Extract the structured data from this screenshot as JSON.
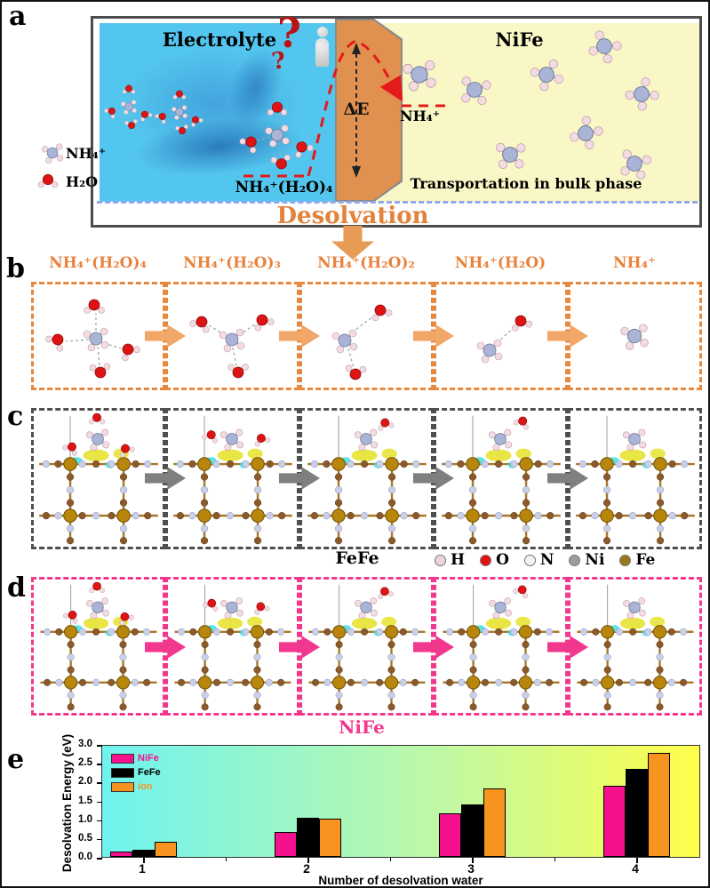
{
  "panel_a": {
    "letter": "a",
    "electrolyte_title": "Electrolyte",
    "nife_title": "NiFe",
    "legend": {
      "nh4": "NH₄⁺",
      "h2o": "H₂O"
    },
    "cluster_label": "NH₄⁺(H₂O)₄",
    "delta_e_label": "ΔE",
    "question_mark": "?",
    "nh4_plus_label": "NH₄⁺",
    "transport_label": "Transportation in bulk phase",
    "desolvation_label": "Desolvation"
  },
  "panel_b": {
    "letter": "b",
    "steps": [
      "NH₄⁺(H₂O)₄",
      "NH₄⁺(H₂O)₃",
      "NH₄⁺(H₂O)₂",
      "NH₄⁺(H₂O)",
      "NH₄⁺"
    ]
  },
  "panel_c": {
    "letter": "c",
    "caption": "FeFe",
    "atom_legend": [
      {
        "symbol": "H",
        "color": "#EBD5DA"
      },
      {
        "symbol": "O",
        "color": "#E11212"
      },
      {
        "symbol": "N",
        "color": "#F2F2F2"
      },
      {
        "symbol": "Ni",
        "color": "#9C9C9C"
      },
      {
        "symbol": "Fe",
        "color": "#98791B"
      }
    ]
  },
  "panel_d": {
    "letter": "d",
    "caption": "NiFe"
  },
  "panel_e": {
    "letter": "e"
  },
  "chart_data": {
    "type": "bar",
    "title": "",
    "categories": [
      "1",
      "2",
      "3",
      "4"
    ],
    "series": [
      {
        "name": "NiFe",
        "color": "#F5108E",
        "values": [
          0.15,
          0.66,
          1.16,
          1.9
        ]
      },
      {
        "name": "FeFe",
        "color": "#000000",
        "values": [
          0.18,
          1.05,
          1.39,
          2.35
        ]
      },
      {
        "name": "ion",
        "color": "#F79420",
        "values": [
          0.4,
          1.02,
          1.81,
          2.77
        ]
      }
    ],
    "xlabel": "Number of desolvation water",
    "ylabel": "Desolvation Energy (eV)",
    "ylim": [
      0,
      3
    ],
    "ytick_step": 0.5,
    "legend_position": "top-left",
    "grid": false,
    "background_gradient": [
      "#6FF3F0",
      "#FEFE4A"
    ]
  }
}
